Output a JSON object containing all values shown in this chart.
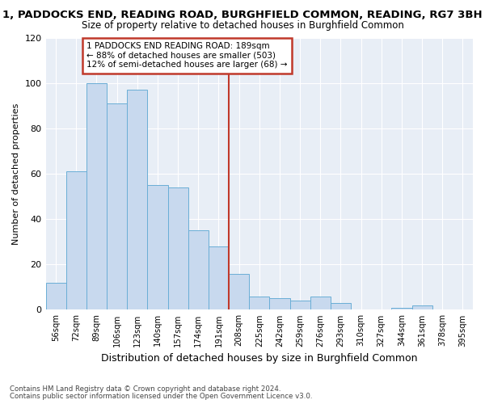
{
  "title": "1, PADDOCKS END, READING ROAD, BURGHFIELD COMMON, READING, RG7 3BH",
  "subtitle": "Size of property relative to detached houses in Burghfield Common",
  "xlabel": "Distribution of detached houses by size in Burghfield Common",
  "ylabel": "Number of detached properties",
  "bar_labels": [
    "56sqm",
    "72sqm",
    "89sqm",
    "106sqm",
    "123sqm",
    "140sqm",
    "157sqm",
    "174sqm",
    "191sqm",
    "208sqm",
    "225sqm",
    "242sqm",
    "259sqm",
    "276sqm",
    "293sqm",
    "310sqm",
    "327sqm",
    "344sqm",
    "361sqm",
    "378sqm",
    "395sqm"
  ],
  "bar_values": [
    12,
    61,
    100,
    91,
    97,
    55,
    54,
    35,
    28,
    16,
    6,
    5,
    4,
    6,
    3,
    0,
    0,
    1,
    2,
    0,
    0
  ],
  "bar_color": "#c8d9ee",
  "bar_edge_color": "#6aaed6",
  "vline_color": "#c0392b",
  "ylim": [
    0,
    120
  ],
  "yticks": [
    0,
    20,
    40,
    60,
    80,
    100,
    120
  ],
  "annotation_line1": "1 PADDOCKS END READING ROAD: 189sqm",
  "annotation_line2": "← 88% of detached houses are smaller (503)",
  "annotation_line3": "12% of semi-detached houses are larger (68) →",
  "annotation_box_color": "#c0392b",
  "footnote1": "Contains HM Land Registry data © Crown copyright and database right 2024.",
  "footnote2": "Contains public sector information licensed under the Open Government Licence v3.0.",
  "fig_bg_color": "#ffffff",
  "plot_bg_color": "#e8eef6",
  "grid_color": "#ffffff",
  "title_fontsize": 9.5,
  "subtitle_fontsize": 8.5,
  "ylabel_fontsize": 8,
  "xlabel_fontsize": 9
}
